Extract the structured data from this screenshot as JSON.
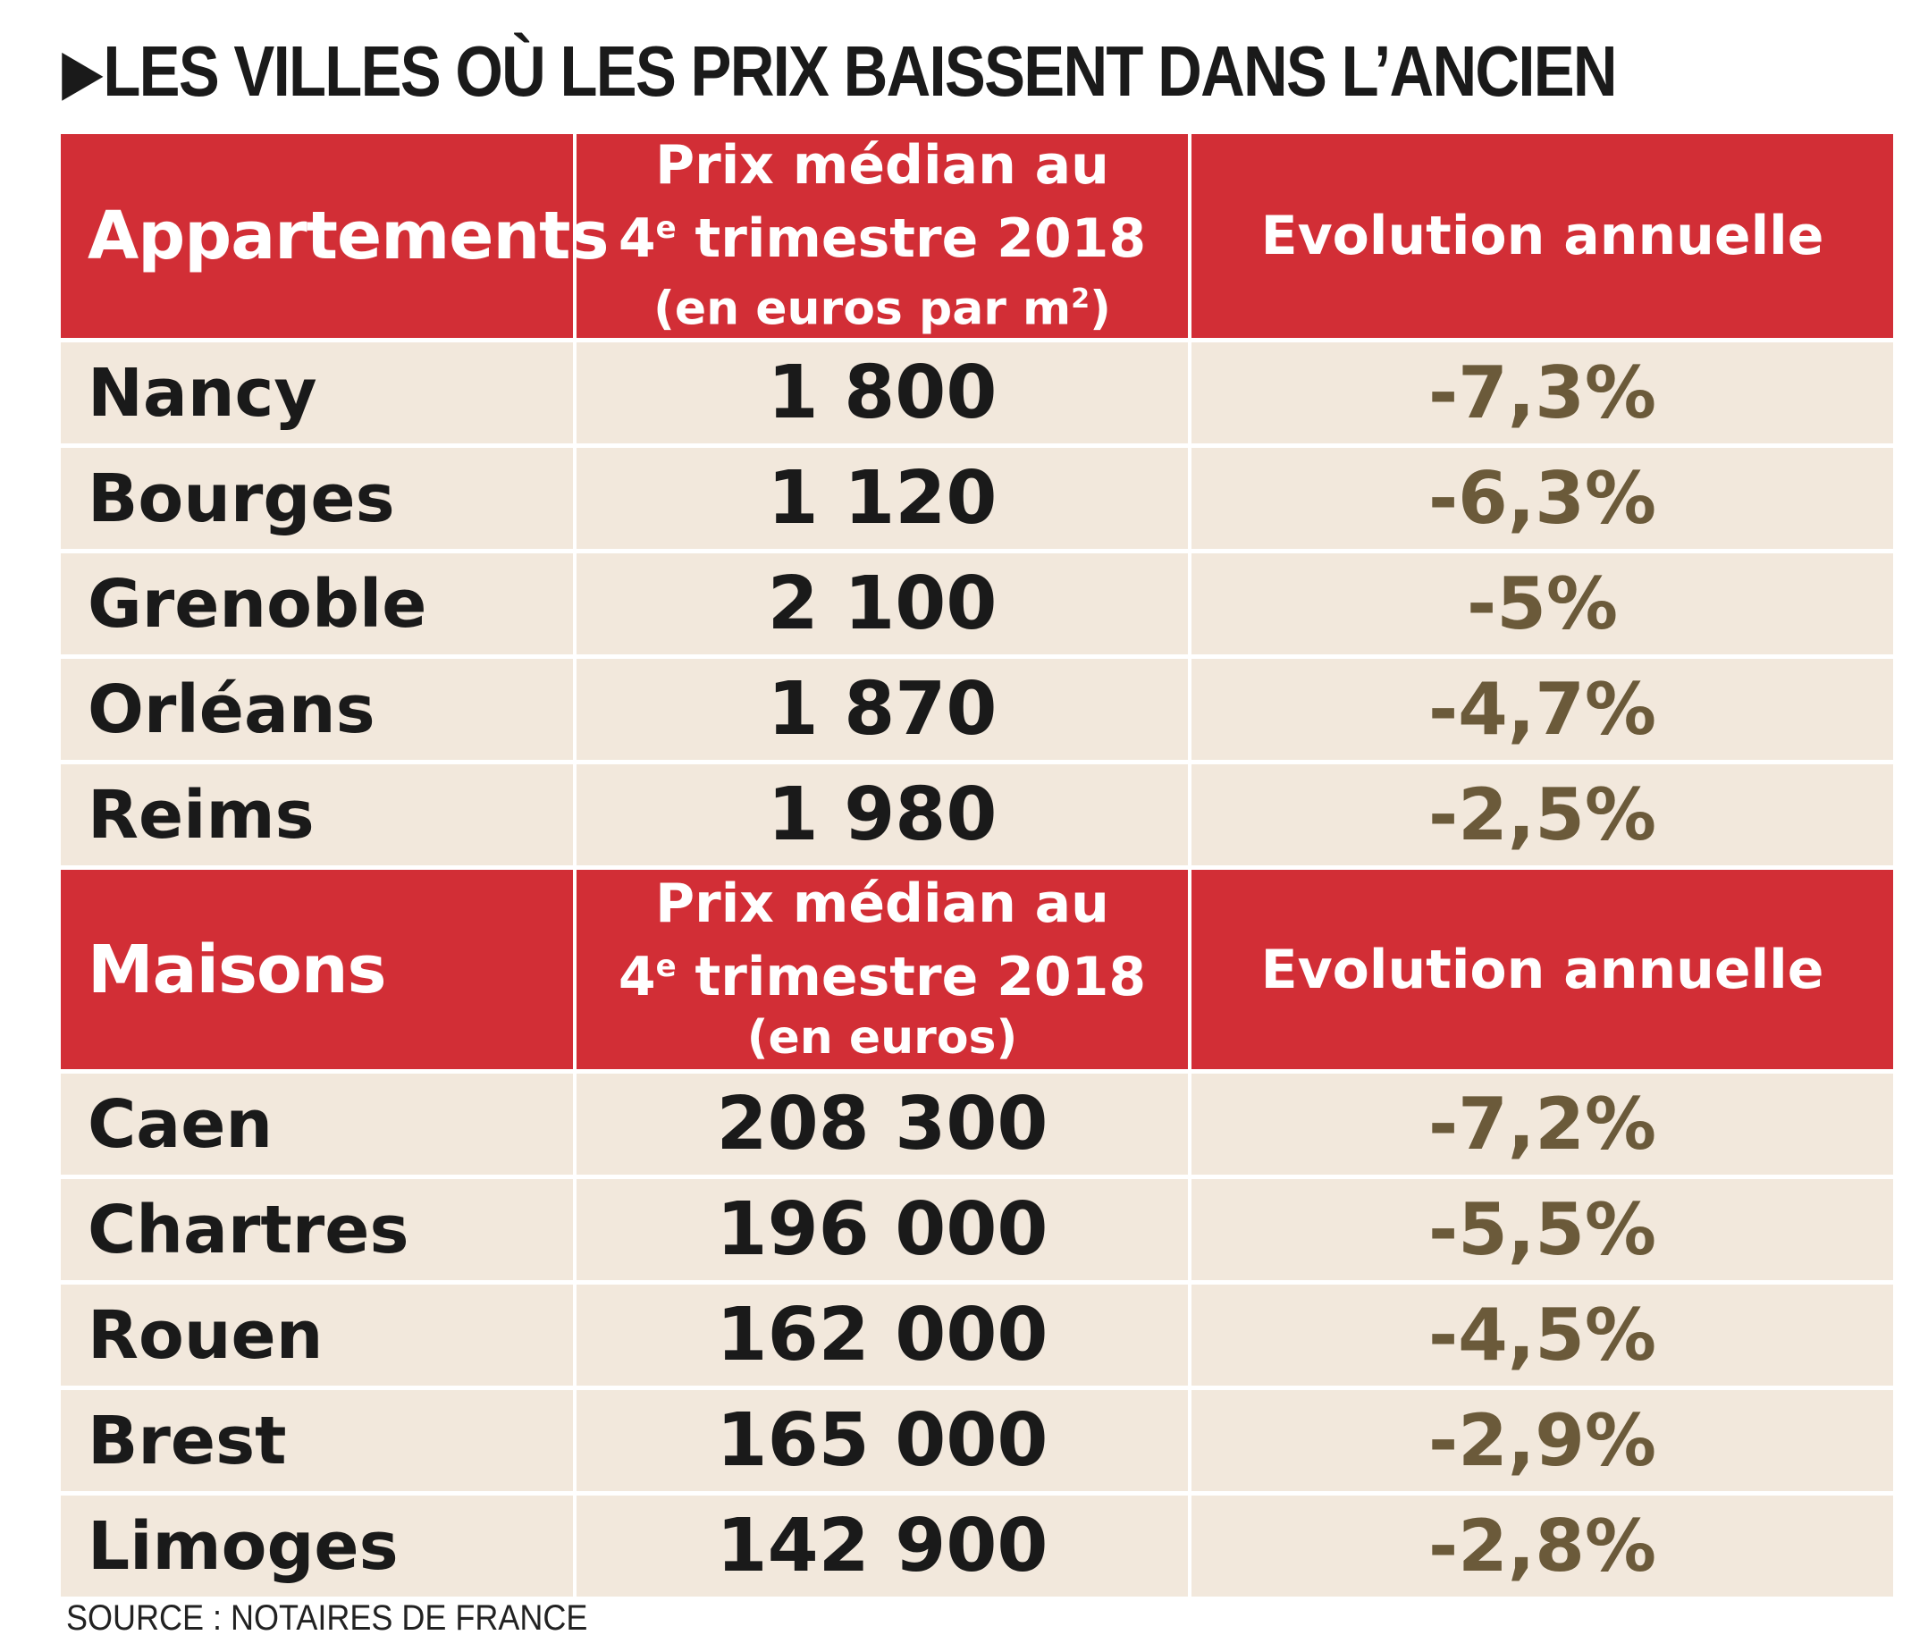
{
  "title": "LES VILLES OÙ LES PRIX BAISSENT DANS L’ANCIEN",
  "title_arrow": "▶",
  "colors": {
    "header_bg": "#d22e36",
    "row_bg": "#f2e8dc",
    "evolution_text": "#6b5a3a"
  },
  "chart_data": [
    {
      "type": "table",
      "columns": [
        "Appartements",
        "Prix médian au 4e trimestre 2018 (en euros par m2)",
        "Evolution annuelle"
      ],
      "header": {
        "label": "Appartements",
        "price_line1": "Prix médian au",
        "price_line2_num": "4",
        "price_line2_sup": "e",
        "price_line2_rest": " trimestre 2018",
        "price_unit_pre": "(en euros par m",
        "price_unit_sup": "2",
        "price_unit_post": ")",
        "evolution": "Evolution annuelle"
      },
      "rows": [
        {
          "city": "Nancy",
          "price": "1 800",
          "evolution": "-7,3%"
        },
        {
          "city": "Bourges",
          "price": "1 120",
          "evolution": "-6,3%"
        },
        {
          "city": "Grenoble",
          "price": "2 100",
          "evolution": "-5%"
        },
        {
          "city": "Orléans",
          "price": "1 870",
          "evolution": "-4,7%"
        },
        {
          "city": "Reims",
          "price": "1 980",
          "evolution": "-2,5%"
        }
      ]
    },
    {
      "type": "table",
      "columns": [
        "Maisons",
        "Prix médian au 4e trimestre 2018 (en euros)",
        "Evolution annuelle"
      ],
      "header": {
        "label": "Maisons",
        "price_line1": "Prix médian au",
        "price_line2_num": "4",
        "price_line2_sup": "e",
        "price_line2_rest": " trimestre 2018",
        "price_unit": "(en euros)",
        "evolution": "Evolution annuelle"
      },
      "rows": [
        {
          "city": "Caen",
          "price": "208 300",
          "evolution": "-7,2%"
        },
        {
          "city": "Chartres",
          "price": "196 000",
          "evolution": "-5,5%"
        },
        {
          "city": "Rouen",
          "price": "162 000",
          "evolution": "-4,5%"
        },
        {
          "city": "Brest",
          "price": "165 000",
          "evolution": "-2,9%"
        },
        {
          "city": "Limoges",
          "price": "142 900",
          "evolution": "-2,8%"
        }
      ]
    }
  ],
  "source": "SOURCE : NOTAIRES DE FRANCE"
}
